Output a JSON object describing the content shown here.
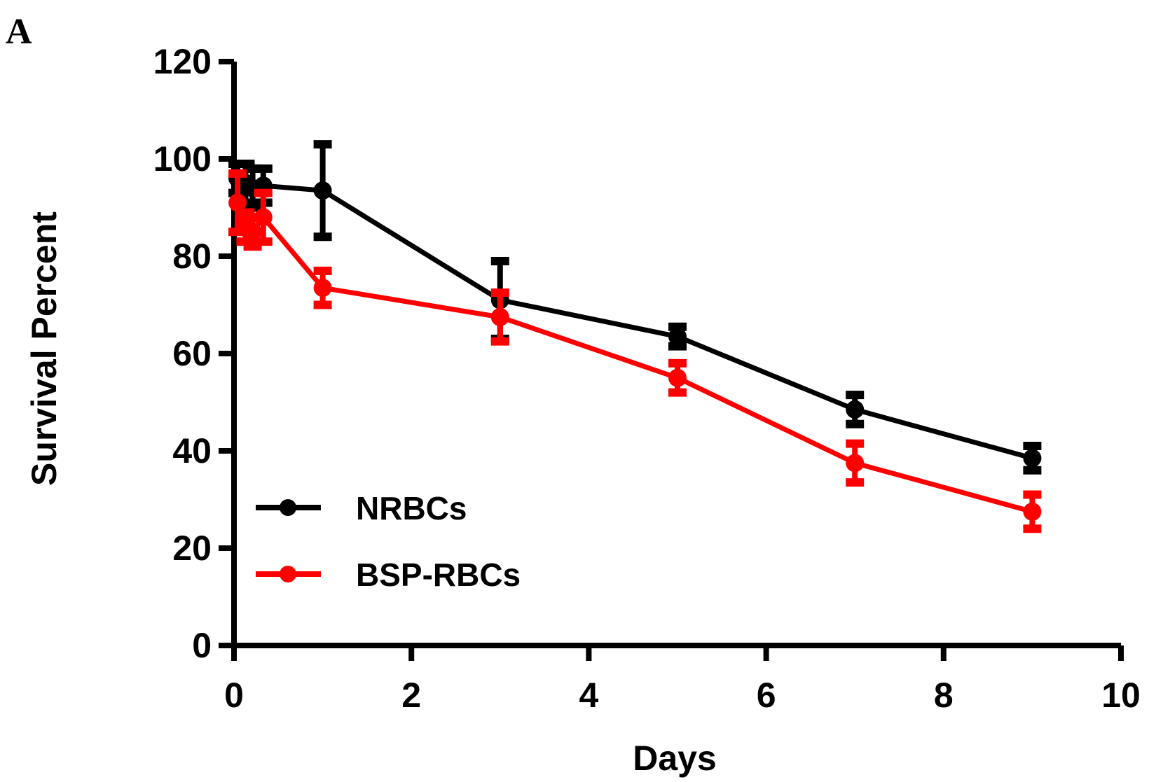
{
  "panel_label": "A",
  "chart_data": {
    "type": "line",
    "xlabel": "Days",
    "ylabel": "Survival Percent",
    "xlim": [
      0,
      10
    ],
    "ylim": [
      0,
      120
    ],
    "xticks": [
      0,
      2,
      4,
      6,
      8,
      10
    ],
    "yticks": [
      0,
      20,
      40,
      60,
      80,
      100,
      120
    ],
    "grid": false,
    "legend_position": "bottom-left",
    "series": [
      {
        "name": "NRBCs",
        "color": "#000000",
        "x": [
          0.04,
          0.13,
          0.21,
          0.33,
          1,
          3,
          5,
          7,
          9
        ],
        "y": [
          96,
          95,
          94,
          94.5,
          93.5,
          71,
          63.5,
          48.5,
          38.5
        ],
        "err": [
          3,
          4,
          4,
          3.5,
          9.5,
          8,
          2,
          3,
          2.5
        ]
      },
      {
        "name": "BSP-RBCs",
        "color": "#ff0000",
        "x": [
          0.04,
          0.13,
          0.21,
          0.33,
          1,
          3,
          5,
          7,
          9
        ],
        "y": [
          91,
          86,
          85,
          88,
          73.5,
          67.5,
          55,
          37.5,
          27.5
        ],
        "err": [
          6,
          3,
          3,
          5,
          3.5,
          5,
          3,
          4,
          3.5
        ]
      }
    ]
  }
}
